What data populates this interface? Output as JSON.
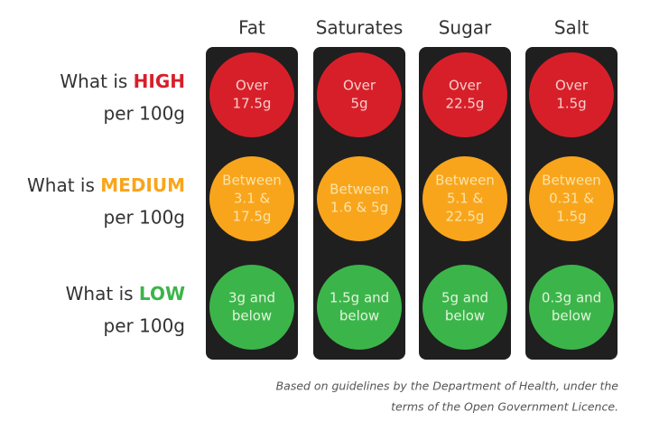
{
  "columns": [
    "Fat",
    "Saturates",
    "Sugar",
    "Salt"
  ],
  "rows": [
    {
      "prefix": "What is",
      "level": "HIGH",
      "suffix": "per 100g",
      "color": "#d71f2a",
      "text_color": "#f6d0cc",
      "cells": [
        [
          "Over",
          "17.5g"
        ],
        [
          "Over",
          "5g"
        ],
        [
          "Over",
          "22.5g"
        ],
        [
          "Over",
          "1.5g"
        ]
      ]
    },
    {
      "prefix": "What is",
      "level": "MEDIUM",
      "suffix": "per 100g",
      "color": "#f8a51c",
      "text_color": "#fbe3a8",
      "cells": [
        [
          "Between",
          "3.1 &",
          "17.5g"
        ],
        [
          "Between",
          "1.6 & 5g"
        ],
        [
          "Between",
          "5.1 &",
          "22.5g"
        ],
        [
          "Between",
          "0.31 &",
          "1.5g"
        ]
      ]
    },
    {
      "prefix": "What is",
      "level": "LOW",
      "suffix": "per 100g",
      "color": "#3bb54a",
      "text_color": "#e3f3dc",
      "cells": [
        [
          "3g and",
          "below"
        ],
        [
          "1.5g and",
          "below"
        ],
        [
          "5g and",
          "below"
        ],
        [
          "0.3g and",
          "below"
        ]
      ]
    }
  ],
  "footnote": [
    "Based on guidelines by the Department of Health, under the",
    "terms of the Open Government Licence."
  ]
}
